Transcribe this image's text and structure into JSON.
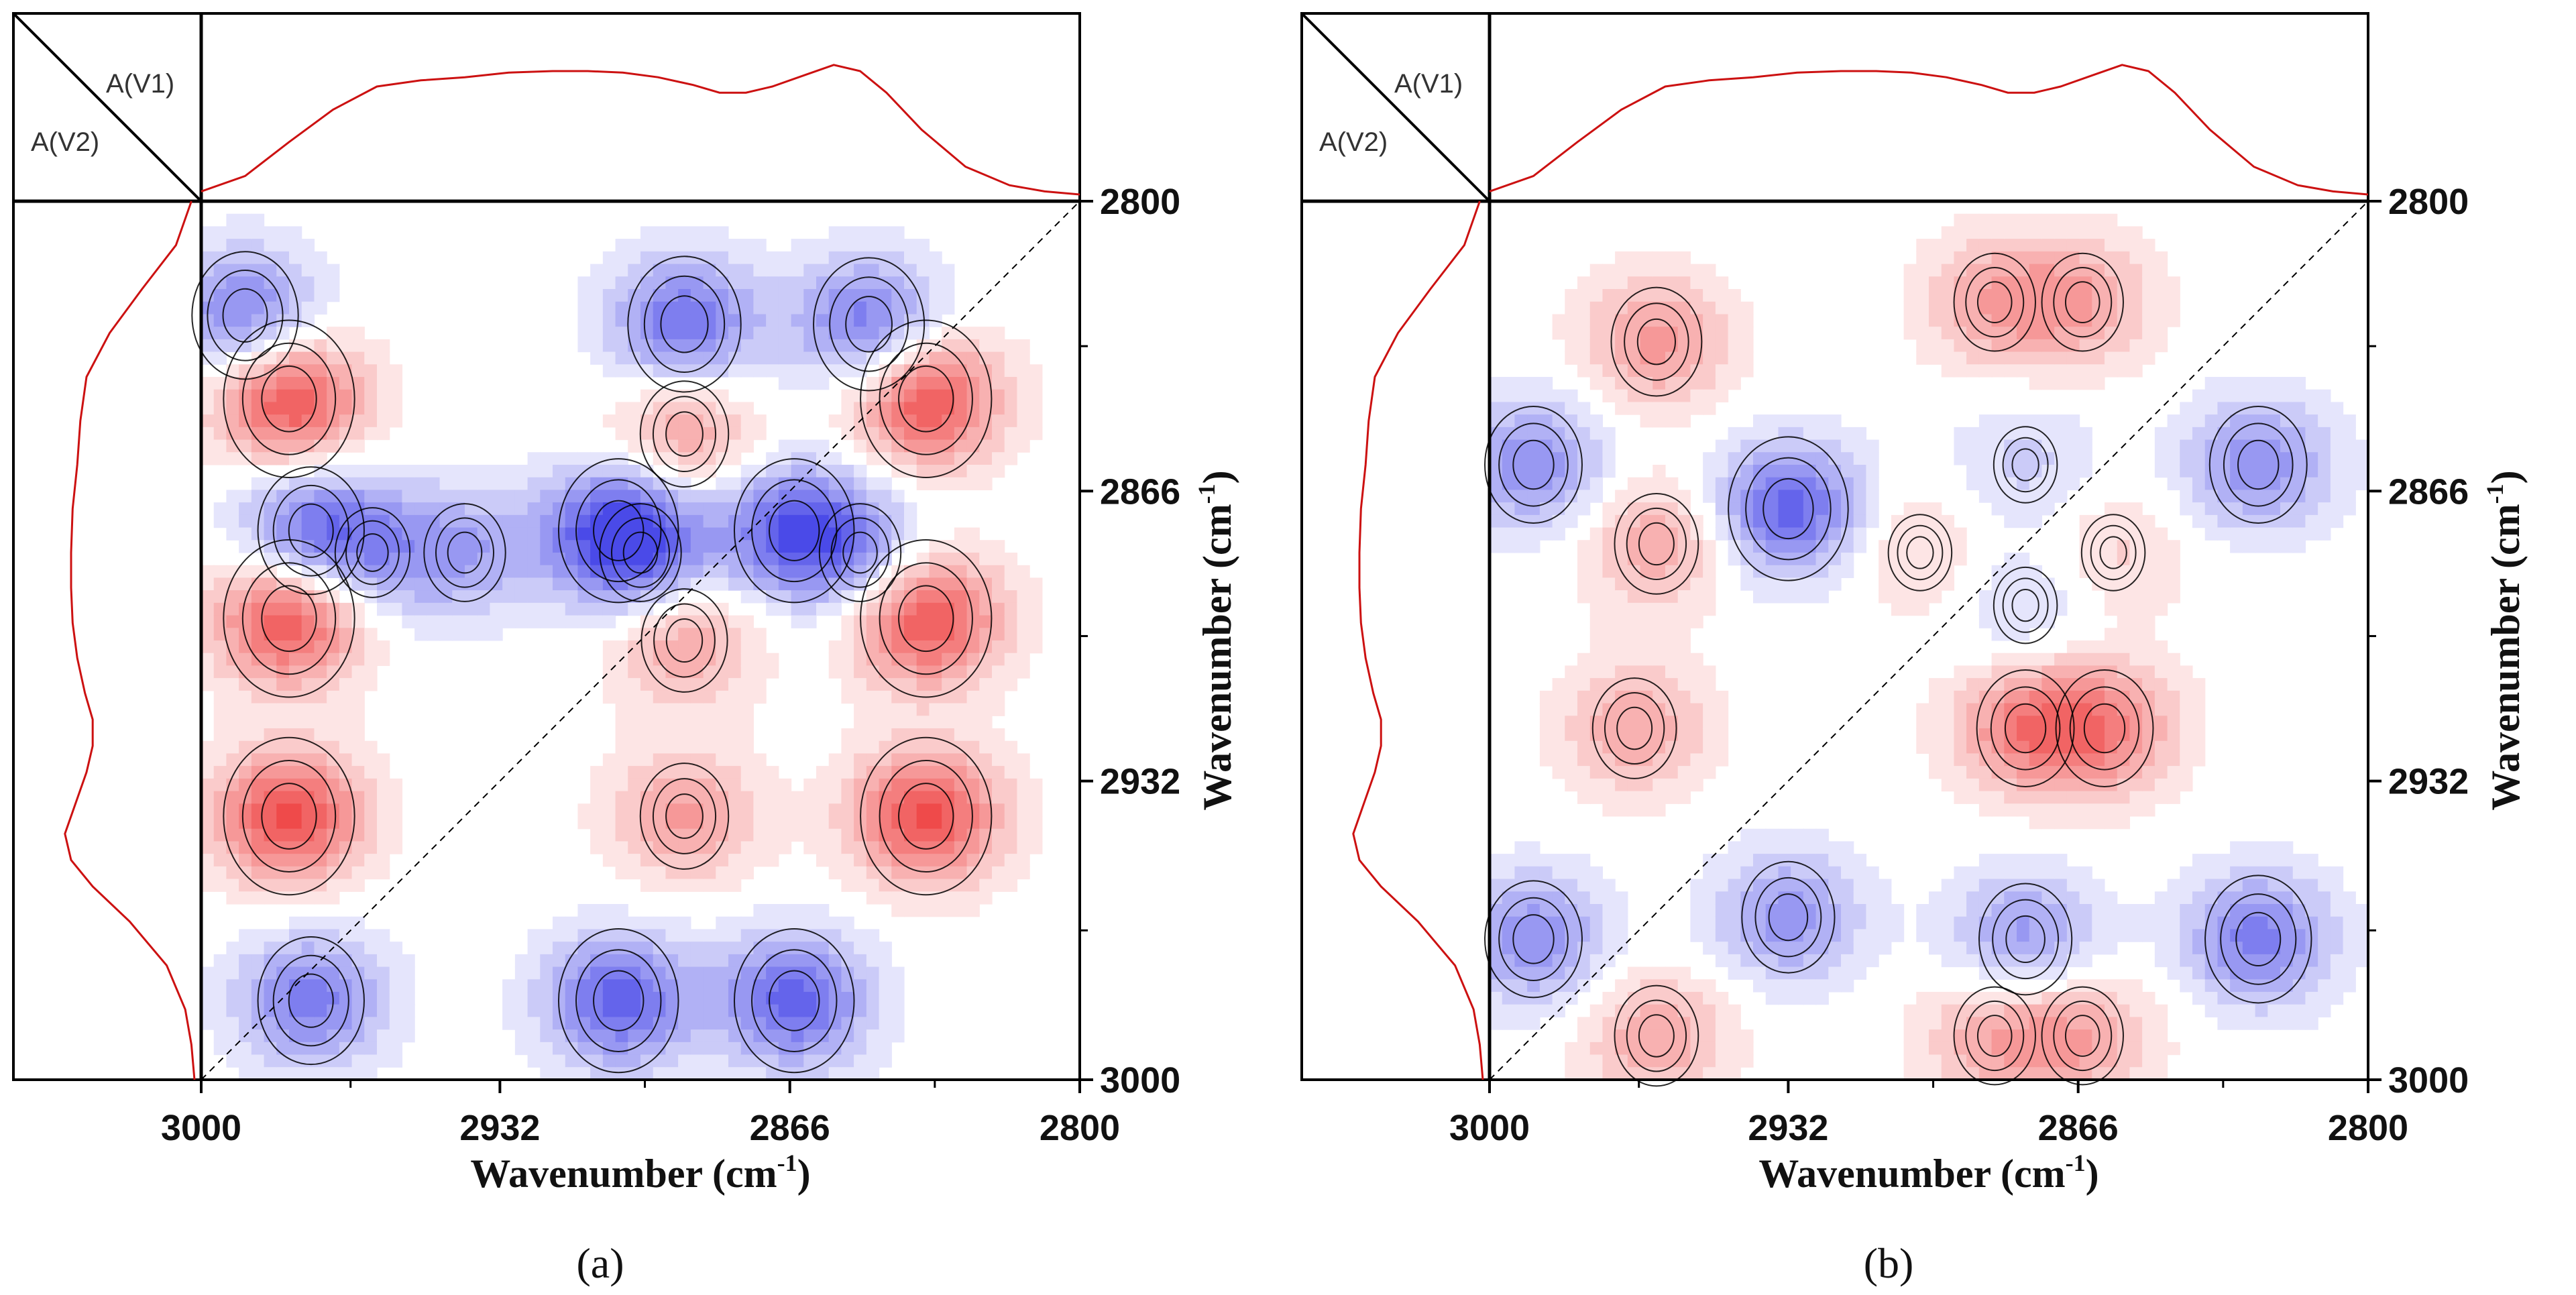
{
  "chart_data": [
    {
      "type": "heatmap",
      "subtype": "2D synchronous correlation contour map",
      "panel_label": "(a)",
      "corner_label_top": "A(V1)",
      "corner_label_bottom": "A(V2)",
      "xlabel": "Wavenumber (cm",
      "ylabel": "Wavenumber (cm",
      "unit_superscript": "-1",
      "unit_close": ")",
      "x_ticks": [
        3000,
        2932,
        2866,
        2800
      ],
      "y_ticks": [
        2800,
        2866,
        2932,
        3000
      ],
      "xlim": [
        3000,
        2800
      ],
      "ylim": [
        2800,
        3000
      ],
      "diagonal": "dashed",
      "colors": {
        "positive": "#ef4a4a",
        "negative": "#4a4ae8",
        "outline": "#000000",
        "spectrum": "#cc1111"
      },
      "spectrum_points": [
        [
          3000,
          0.02
        ],
        [
          2990,
          0.12
        ],
        [
          2980,
          0.34
        ],
        [
          2970,
          0.55
        ],
        [
          2960,
          0.7
        ],
        [
          2950,
          0.74
        ],
        [
          2940,
          0.76
        ],
        [
          2930,
          0.79
        ],
        [
          2920,
          0.8
        ],
        [
          2912,
          0.8
        ],
        [
          2904,
          0.79
        ],
        [
          2896,
          0.76
        ],
        [
          2888,
          0.71
        ],
        [
          2882,
          0.66
        ],
        [
          2876,
          0.66
        ],
        [
          2870,
          0.7
        ],
        [
          2862,
          0.78
        ],
        [
          2856,
          0.84
        ],
        [
          2850,
          0.8
        ],
        [
          2844,
          0.66
        ],
        [
          2836,
          0.42
        ],
        [
          2826,
          0.18
        ],
        [
          2816,
          0.06
        ],
        [
          2808,
          0.02
        ],
        [
          2800,
          0.0
        ]
      ],
      "peaks": [
        {
          "x": 2975,
          "y": 2875,
          "value": -3.0
        },
        {
          "x": 2865,
          "y": 2875,
          "value": -3.6
        },
        {
          "x": 2905,
          "y": 2875,
          "value": -3.6
        },
        {
          "x": 2975,
          "y": 2982,
          "value": -3.0
        },
        {
          "x": 2865,
          "y": 2982,
          "value": -3.6
        },
        {
          "x": 2905,
          "y": 2982,
          "value": -3.6
        },
        {
          "x": 2990,
          "y": 2826,
          "value": -3.0
        },
        {
          "x": 2890,
          "y": 2828,
          "value": -3.3
        },
        {
          "x": 2848,
          "y": 2828,
          "value": -3.2
        },
        {
          "x": 2980,
          "y": 2845,
          "value": 4.1
        },
        {
          "x": 2980,
          "y": 2895,
          "value": 4.1
        },
        {
          "x": 2980,
          "y": 2940,
          "value": 4.1
        },
        {
          "x": 2835,
          "y": 2845,
          "value": 4.1
        },
        {
          "x": 2835,
          "y": 2895,
          "value": 4.1
        },
        {
          "x": 2835,
          "y": 2940,
          "value": 4.1
        },
        {
          "x": 2890,
          "y": 2853,
          "value": 2.2
        },
        {
          "x": 2890,
          "y": 2900,
          "value": 2.1
        },
        {
          "x": 2890,
          "y": 2940,
          "value": 2.2
        },
        {
          "x": 2940,
          "y": 2880,
          "value": -1.9
        },
        {
          "x": 2900,
          "y": 2880,
          "value": -1.9
        },
        {
          "x": 2850,
          "y": 2880,
          "value": -1.9
        },
        {
          "x": 2961,
          "y": 2880,
          "value": -1.6
        }
      ]
    },
    {
      "type": "heatmap",
      "subtype": "2D asynchronous correlation contour map",
      "panel_label": "(b)",
      "corner_label_top": "A(V1)",
      "corner_label_bottom": "A(V2)",
      "xlabel": "Wavenumber (cm",
      "ylabel": "Wavenumber (cm",
      "unit_superscript": "-1",
      "unit_close": ")",
      "x_ticks": [
        3000,
        2932,
        2866,
        2800
      ],
      "y_ticks": [
        2800,
        2866,
        2932,
        3000
      ],
      "xlim": [
        3000,
        2800
      ],
      "ylim": [
        2800,
        3000
      ],
      "diagonal": "dashed",
      "colors": {
        "positive": "#ef4a4a",
        "negative": "#4a4ae8",
        "outline": "#000000",
        "spectrum": "#cc1111"
      },
      "spectrum_points": [
        [
          3000,
          0.02
        ],
        [
          2990,
          0.12
        ],
        [
          2980,
          0.34
        ],
        [
          2970,
          0.55
        ],
        [
          2960,
          0.7
        ],
        [
          2950,
          0.74
        ],
        [
          2940,
          0.76
        ],
        [
          2930,
          0.79
        ],
        [
          2920,
          0.8
        ],
        [
          2912,
          0.8
        ],
        [
          2904,
          0.79
        ],
        [
          2896,
          0.76
        ],
        [
          2888,
          0.71
        ],
        [
          2882,
          0.66
        ],
        [
          2876,
          0.66
        ],
        [
          2870,
          0.7
        ],
        [
          2862,
          0.78
        ],
        [
          2856,
          0.84
        ],
        [
          2850,
          0.8
        ],
        [
          2844,
          0.66
        ],
        [
          2836,
          0.42
        ],
        [
          2826,
          0.18
        ],
        [
          2816,
          0.06
        ],
        [
          2808,
          0.02
        ],
        [
          2800,
          0.0
        ]
      ],
      "peaks": [
        {
          "x": 2962,
          "y": 2832,
          "value": 2.3
        },
        {
          "x": 2962,
          "y": 2878,
          "value": 2.0
        },
        {
          "x": 2962,
          "y": 2990,
          "value": 2.0
        },
        {
          "x": 2885,
          "y": 2823,
          "value": 1.9
        },
        {
          "x": 2865,
          "y": 2823,
          "value": 1.9
        },
        {
          "x": 2885,
          "y": 2990,
          "value": 1.9
        },
        {
          "x": 2865,
          "y": 2990,
          "value": 1.9
        },
        {
          "x": 2967,
          "y": 2920,
          "value": 2.0
        },
        {
          "x": 2878,
          "y": 2920,
          "value": 2.6
        },
        {
          "x": 2860,
          "y": 2920,
          "value": 2.6
        },
        {
          "x": 2902,
          "y": 2880,
          "value": 1.1
        },
        {
          "x": 2858,
          "y": 2880,
          "value": 1.1
        },
        {
          "x": 2932,
          "y": 2870,
          "value": -3.6
        },
        {
          "x": 2932,
          "y": 2963,
          "value": -2.4
        },
        {
          "x": 2990,
          "y": 2860,
          "value": -2.6
        },
        {
          "x": 2825,
          "y": 2860,
          "value": -2.6
        },
        {
          "x": 2990,
          "y": 2968,
          "value": -2.6
        },
        {
          "x": 2825,
          "y": 2968,
          "value": -3.0
        },
        {
          "x": 2878,
          "y": 2968,
          "value": -2.4
        },
        {
          "x": 2878,
          "y": 2860,
          "value": -1.1
        },
        {
          "x": 2878,
          "y": 2892,
          "value": -1.1
        }
      ]
    }
  ]
}
